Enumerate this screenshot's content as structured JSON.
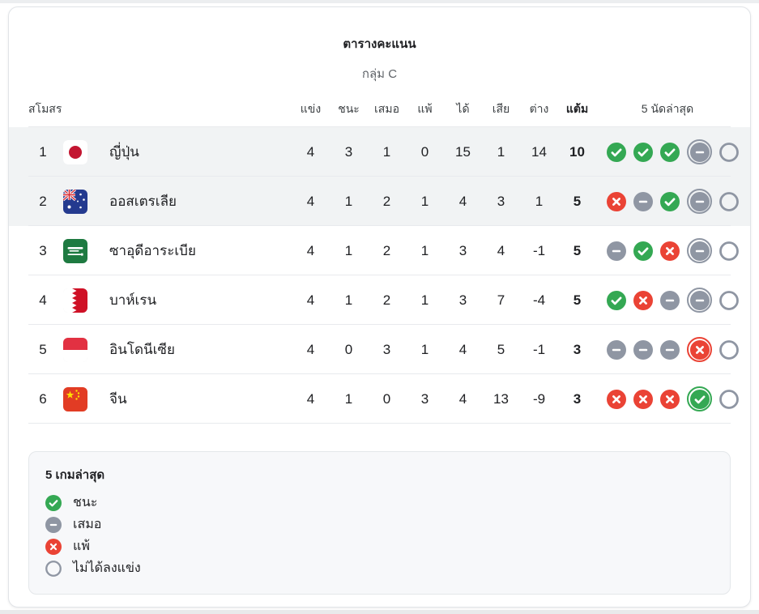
{
  "header": {
    "title": "ตารางคะแนน",
    "subtitle": "กลุ่ม C"
  },
  "table": {
    "columns": {
      "club": "สโมสร",
      "played": "แข่ง",
      "won": "ชนะ",
      "drawn": "เสมอ",
      "lost": "แพ้",
      "gf": "ได้",
      "ga": "เสีย",
      "gd": "ต่าง",
      "pts": "แต้ม",
      "last5": "5 นัดล่าสุด"
    },
    "rows": [
      {
        "pos": 1,
        "team": "ญี่ปุ่น",
        "flag": "japan",
        "highlight": true,
        "played": 4,
        "won": 3,
        "drawn": 1,
        "lost": 0,
        "gf": 15,
        "ga": 1,
        "gd": 14,
        "pts": 10,
        "last5": [
          {
            "r": "win"
          },
          {
            "r": "win"
          },
          {
            "r": "win"
          },
          {
            "r": "draw",
            "ring": true
          },
          {
            "r": "none"
          }
        ]
      },
      {
        "pos": 2,
        "team": "ออสเตรเลีย",
        "flag": "australia",
        "highlight": true,
        "played": 4,
        "won": 1,
        "drawn": 2,
        "lost": 1,
        "gf": 4,
        "ga": 3,
        "gd": 1,
        "pts": 5,
        "last5": [
          {
            "r": "loss"
          },
          {
            "r": "draw"
          },
          {
            "r": "win"
          },
          {
            "r": "draw",
            "ring": true
          },
          {
            "r": "none"
          }
        ]
      },
      {
        "pos": 3,
        "team": "ซาอุดีอาระเบีย",
        "flag": "saudi",
        "highlight": false,
        "played": 4,
        "won": 1,
        "drawn": 2,
        "lost": 1,
        "gf": 3,
        "ga": 4,
        "gd": -1,
        "pts": 5,
        "last5": [
          {
            "r": "draw"
          },
          {
            "r": "win"
          },
          {
            "r": "loss"
          },
          {
            "r": "draw",
            "ring": true
          },
          {
            "r": "none"
          }
        ]
      },
      {
        "pos": 4,
        "team": "บาห์เรน",
        "flag": "bahrain",
        "highlight": false,
        "played": 4,
        "won": 1,
        "drawn": 2,
        "lost": 1,
        "gf": 3,
        "ga": 7,
        "gd": -4,
        "pts": 5,
        "last5": [
          {
            "r": "win"
          },
          {
            "r": "loss"
          },
          {
            "r": "draw"
          },
          {
            "r": "draw",
            "ring": true
          },
          {
            "r": "none"
          }
        ]
      },
      {
        "pos": 5,
        "team": "อินโดนีเซีย",
        "flag": "indonesia",
        "highlight": false,
        "played": 4,
        "won": 0,
        "drawn": 3,
        "lost": 1,
        "gf": 4,
        "ga": 5,
        "gd": -1,
        "pts": 3,
        "last5": [
          {
            "r": "draw"
          },
          {
            "r": "draw"
          },
          {
            "r": "draw"
          },
          {
            "r": "loss",
            "ring": true
          },
          {
            "r": "none"
          }
        ]
      },
      {
        "pos": 6,
        "team": "จีน",
        "flag": "china",
        "highlight": false,
        "played": 4,
        "won": 1,
        "drawn": 0,
        "lost": 3,
        "gf": 4,
        "ga": 13,
        "gd": -9,
        "pts": 3,
        "last5": [
          {
            "r": "loss"
          },
          {
            "r": "loss"
          },
          {
            "r": "loss"
          },
          {
            "r": "win",
            "ring": true
          },
          {
            "r": "none"
          }
        ]
      }
    ]
  },
  "legend": {
    "title": "5 เกมล่าสุด",
    "items": [
      {
        "icon": "win",
        "label": "ชนะ"
      },
      {
        "icon": "draw",
        "label": "เสมอ"
      },
      {
        "icon": "loss",
        "label": "แพ้"
      },
      {
        "icon": "none",
        "label": "ไม่ได้ลงแข่ง"
      }
    ]
  },
  "colors": {
    "win": "#34a853",
    "draw": "#8f96a3",
    "loss": "#ea4335",
    "row_highlight": "#f1f3f4"
  }
}
